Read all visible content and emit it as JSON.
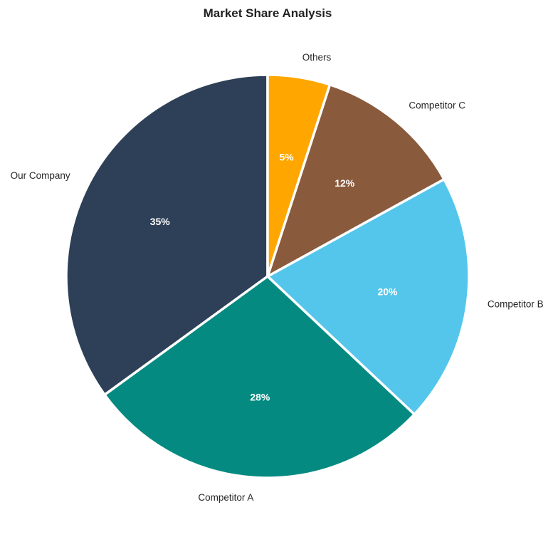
{
  "chart_data": {
    "type": "pie",
    "title": "Market Share Analysis",
    "slices": [
      {
        "label": "Our Company",
        "value": 35,
        "pct_label": "35%",
        "color": "#2e4057"
      },
      {
        "label": "Competitor A",
        "value": 28,
        "pct_label": "28%",
        "color": "#048a81"
      },
      {
        "label": "Competitor B",
        "value": 20,
        "pct_label": "20%",
        "color": "#54c6eb"
      },
      {
        "label": "Competitor C",
        "value": 12,
        "pct_label": "12%",
        "color": "#8a5a3c"
      },
      {
        "label": "Others",
        "value": 5,
        "pct_label": "5%",
        "color": "#ffa600"
      }
    ],
    "start_angle_deg": 90,
    "direction": "counterclockwise",
    "edge_color": "#ffffff"
  }
}
